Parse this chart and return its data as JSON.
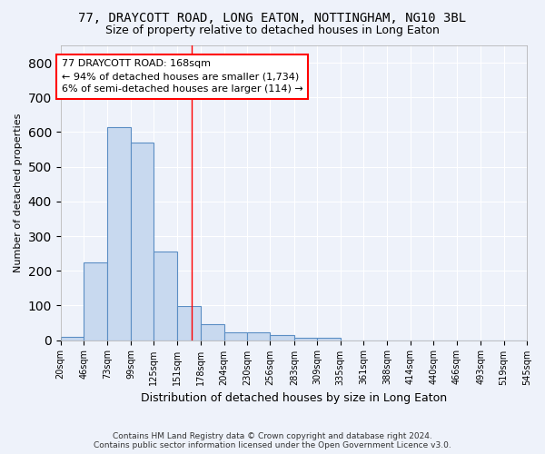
{
  "title": "77, DRAYCOTT ROAD, LONG EATON, NOTTINGHAM, NG10 3BL",
  "subtitle": "Size of property relative to detached houses in Long Eaton",
  "xlabel": "Distribution of detached houses by size in Long Eaton",
  "ylabel": "Number of detached properties",
  "bin_edges": [
    20,
    46,
    73,
    99,
    125,
    151,
    178,
    204,
    230,
    256,
    283,
    309,
    335,
    361,
    388,
    414,
    440,
    466,
    493,
    519,
    545
  ],
  "bar_heights": [
    10,
    225,
    615,
    570,
    255,
    98,
    47,
    22,
    22,
    15,
    8,
    8,
    0,
    0,
    0,
    0,
    0,
    0,
    0,
    0
  ],
  "bar_color": "#c8d9ef",
  "bar_edge_color": "#5b8ec4",
  "background_color": "#eef2fa",
  "grid_color": "#ffffff",
  "red_line_x": 168,
  "annotation_line1": "77 DRAYCOTT ROAD: 168sqm",
  "annotation_line2": "← 94% of detached houses are smaller (1,734)",
  "annotation_line3": "6% of semi-detached houses are larger (114) →",
  "annotation_box_color": "white",
  "annotation_box_edge": "red",
  "footer_line1": "Contains HM Land Registry data © Crown copyright and database right 2024.",
  "footer_line2": "Contains public sector information licensed under the Open Government Licence v3.0.",
  "ylim": [
    0,
    850
  ],
  "yticks": [
    0,
    100,
    200,
    300,
    400,
    500,
    600,
    700,
    800
  ]
}
